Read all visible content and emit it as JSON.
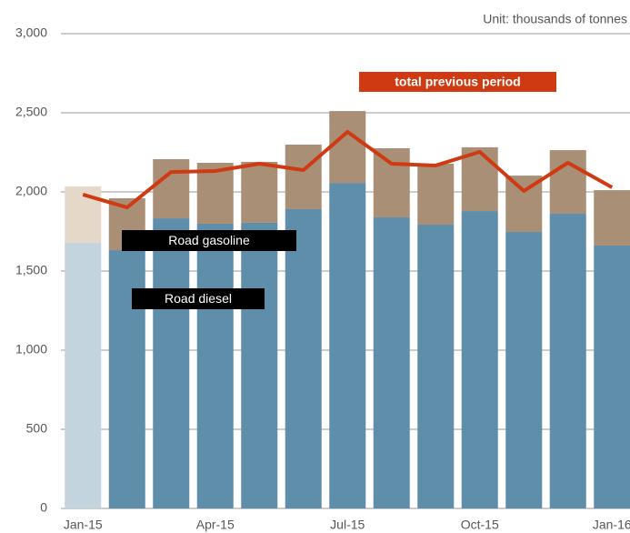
{
  "chart_data": {
    "type": "bar",
    "subtitle": "Unit: thousands of tonnes",
    "categories": [
      "Jan-15",
      null,
      null,
      "Apr-15",
      null,
      null,
      "Jul-15",
      null,
      null,
      "Oct-15",
      null,
      null,
      "Jan-16"
    ],
    "stacked": true,
    "series": [
      {
        "name": "Road diesel",
        "colors": [
          "#c3d4df",
          "#5f8eaa",
          "#5f8eaa",
          "#5f8eaa",
          "#5f8eaa",
          "#5f8eaa",
          "#5f8eaa",
          "#5f8eaa",
          "#5f8eaa",
          "#5f8eaa",
          "#5f8eaa",
          "#5f8eaa",
          "#5f8eaa"
        ],
        "values": [
          1678,
          1632,
          1833,
          1799,
          1805,
          1891,
          2057,
          1839,
          1793,
          1879,
          1747,
          1862,
          1661
        ]
      },
      {
        "name": "Road gasoline",
        "colors": [
          "#e6d8c8",
          "#a88f76",
          "#a88f76",
          "#a88f76",
          "#a88f76",
          "#a88f76",
          "#a88f76",
          "#a88f76",
          "#a88f76",
          "#a88f76",
          "#a88f76",
          "#a88f76",
          "#a88f76"
        ],
        "values": [
          356,
          328,
          374,
          385,
          385,
          408,
          454,
          437,
          385,
          403,
          356,
          402,
          350
        ]
      },
      {
        "name": "total previous period",
        "type": "line",
        "color": "#d03a12",
        "values": [
          1983,
          1902,
          2126,
          2132,
          2178,
          2138,
          2379,
          2178,
          2167,
          2253,
          2006,
          2184,
          2029
        ]
      }
    ],
    "ylim": [
      0,
      3000
    ],
    "yticks": [
      0,
      500,
      {
        "value": 1000,
        "label": "1,000"
      },
      {
        "value": 1500,
        "label": "1,500"
      },
      {
        "value": 2000,
        "label": "2,000"
      },
      {
        "value": 2500,
        "label": "2,500"
      },
      {
        "value": 3000,
        "label": "3,000"
      }
    ],
    "grid": true
  }
}
